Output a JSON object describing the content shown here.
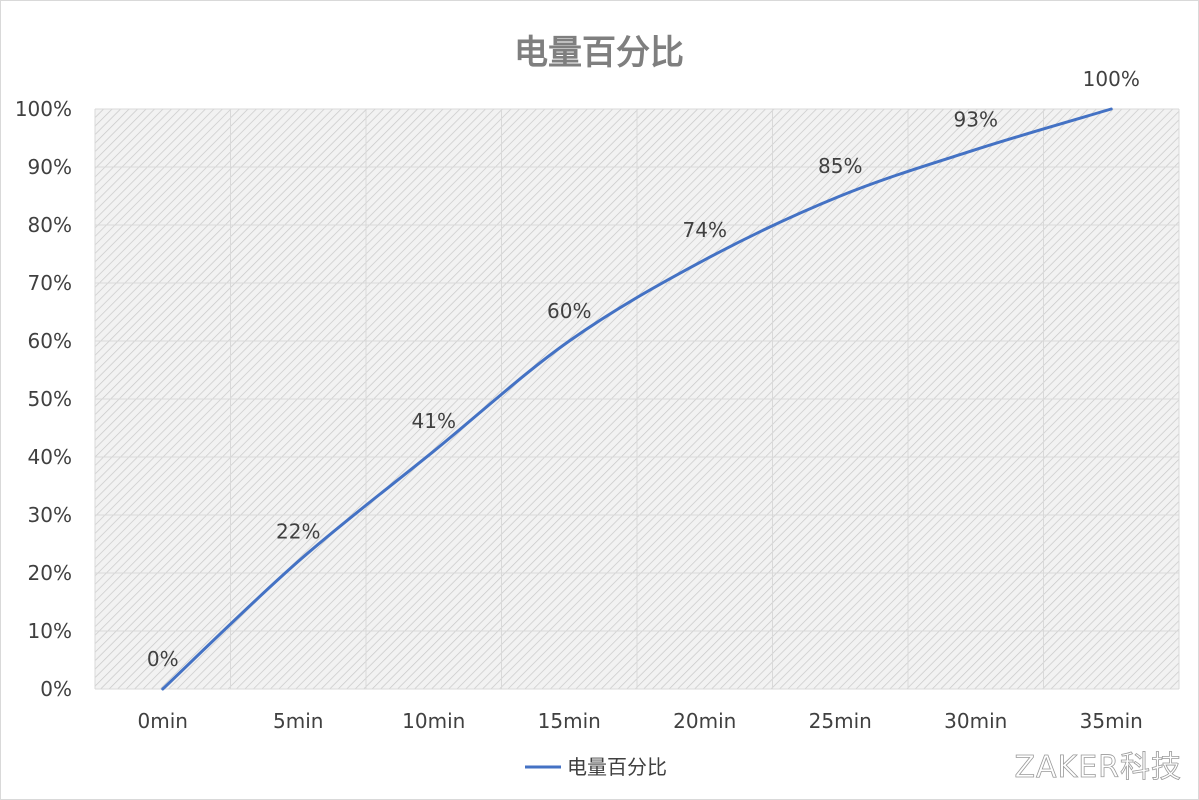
{
  "chart_data": {
    "type": "line",
    "title": "电量百分比",
    "categories": [
      "0min",
      "5min",
      "10min",
      "15min",
      "20min",
      "25min",
      "30min",
      "35min"
    ],
    "series": [
      {
        "name": "电量百分比",
        "values": [
          0,
          22,
          41,
          60,
          74,
          85,
          93,
          100
        ],
        "labels": [
          "0%",
          "22%",
          "41%",
          "60%",
          "74%",
          "85%",
          "93%",
          "100%"
        ]
      }
    ],
    "ylim": [
      0,
      100
    ],
    "yticks": [
      "0%",
      "10%",
      "20%",
      "30%",
      "40%",
      "50%",
      "60%",
      "70%",
      "80%",
      "90%",
      "100%"
    ],
    "xlabel": "",
    "ylabel": "",
    "grid": true,
    "legend_position": "bottom",
    "colors": {
      "line": "#4472c4",
      "title": "#7f7f7f",
      "text": "#404040",
      "grid": "#d9d9d9",
      "hatch": "#bfbfbf"
    }
  },
  "watermark": "ZAKER科技"
}
